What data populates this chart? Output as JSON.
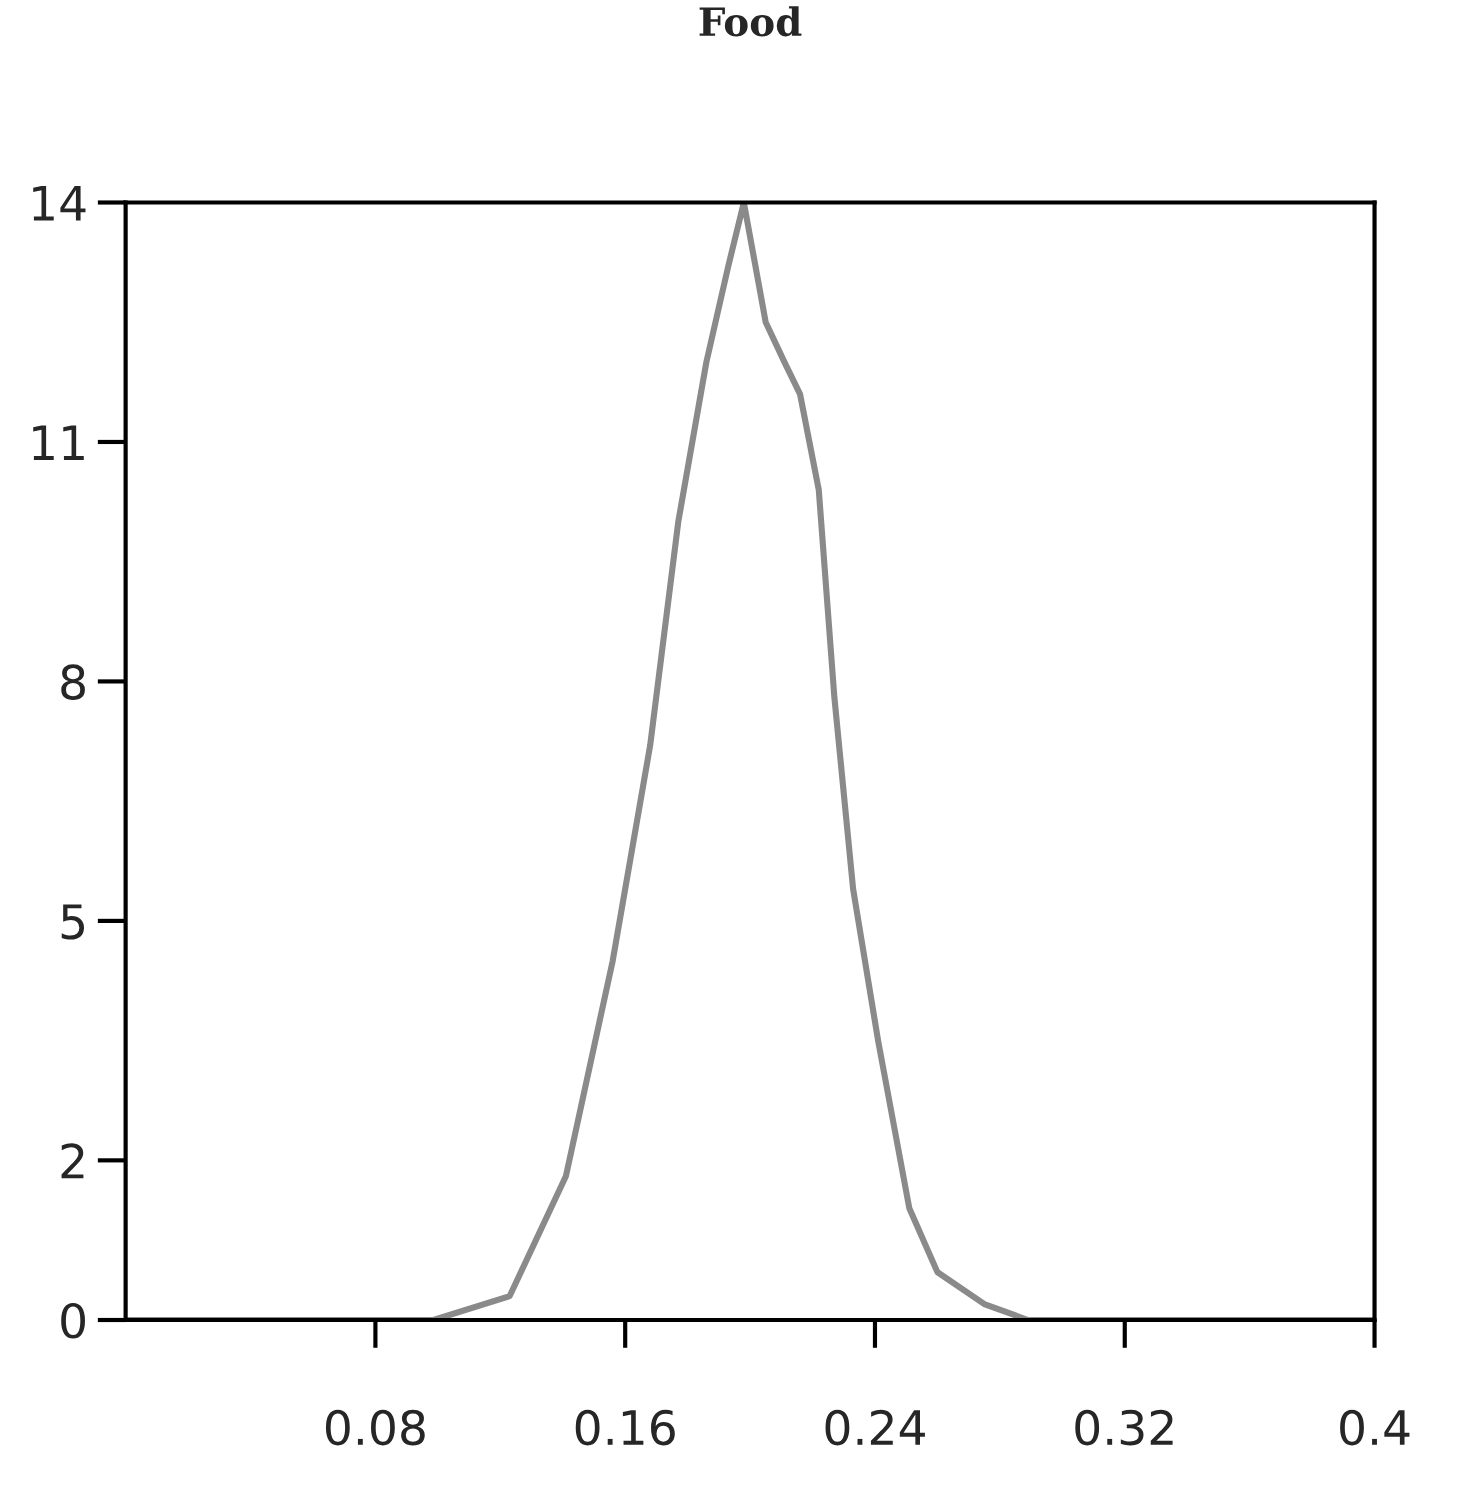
{
  "chart_data": {
    "type": "line",
    "title": "Food",
    "x": [
      0,
      0.04,
      0.0986,
      0.123,
      0.141,
      0.156,
      0.168,
      0.177,
      0.186,
      0.193,
      0.198,
      0.205,
      0.211,
      0.216,
      0.222,
      0.227,
      0.233,
      0.241,
      0.251,
      0.26,
      0.275,
      0.289,
      0.34,
      0.4
    ],
    "series": [
      {
        "color": "#8a8a8a",
        "values": [
          0,
          0,
          0,
          0.3,
          1.8,
          4.5,
          7.2,
          10.0,
          12.0,
          13.2,
          14,
          12.5,
          12.0,
          11.6,
          10.4,
          7.8,
          5.4,
          3.5,
          1.4,
          0.6,
          0.2,
          0,
          0,
          0
        ]
      }
    ],
    "xlim": [
      0,
      0.4
    ],
    "ylim": [
      0,
      14
    ],
    "xticks": [
      0.08,
      0.16,
      0.24,
      0.32,
      0.4
    ],
    "yticks": [
      0,
      2,
      5,
      8,
      11,
      14
    ],
    "grid": false,
    "legend": false,
    "marker": "none",
    "line_style": "solid"
  }
}
